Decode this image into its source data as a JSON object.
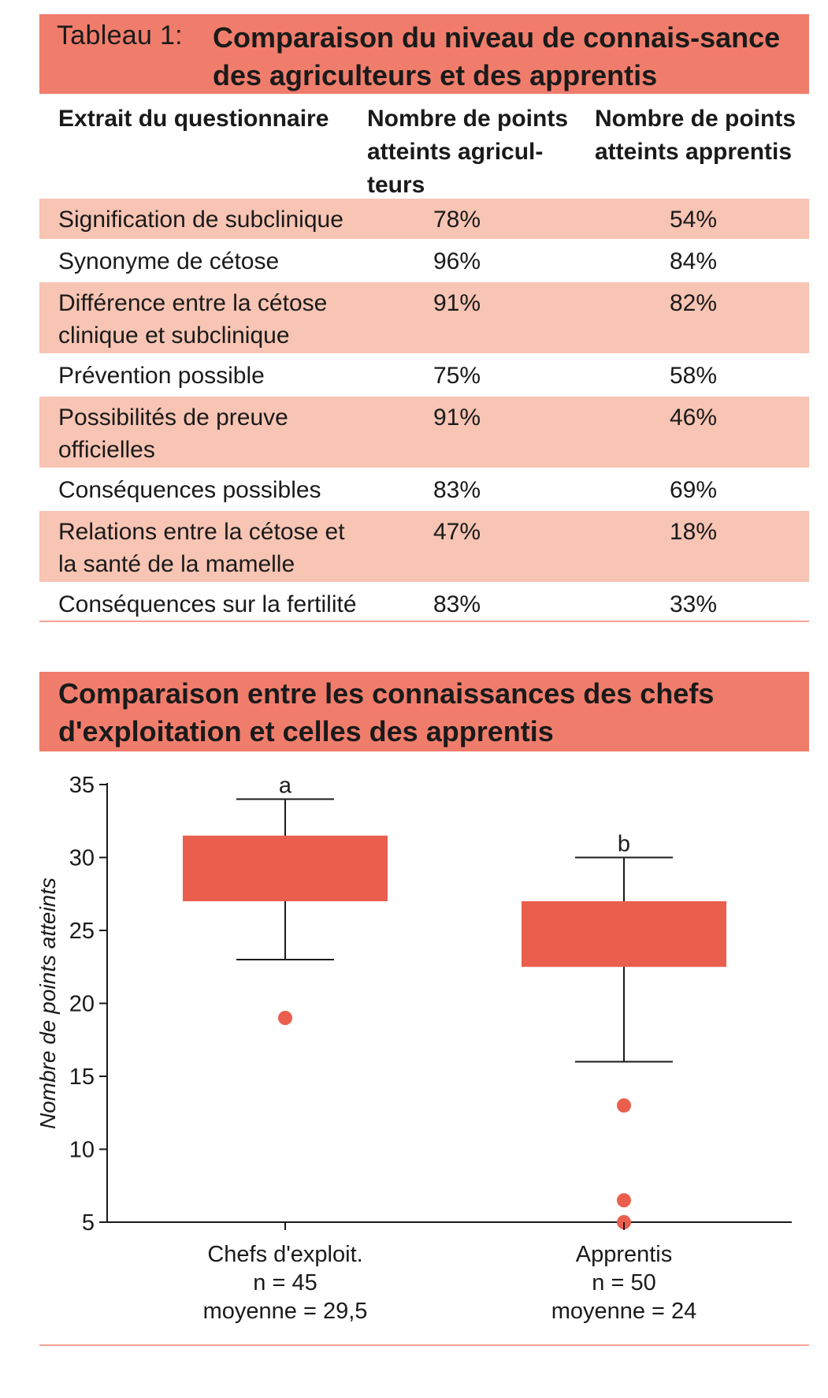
{
  "table": {
    "label": "Tableau 1:",
    "title": "Comparaison du niveau de connais-sance des agriculteurs et des apprentis",
    "columns": [
      "Extrait du questionnaire",
      "Nombre de points atteints agricul-teurs",
      "Nombre de points atteints apprentis"
    ],
    "rows": [
      {
        "item": "Signification de subclinique",
        "farmers": "78%",
        "apprentices": "54%"
      },
      {
        "item": "Synonyme de cétose",
        "farmers": "96%",
        "apprentices": "84%"
      },
      {
        "item": "Différence entre la cétose clinique et subclinique",
        "farmers": "91%",
        "apprentices": "82%"
      },
      {
        "item": "Prévention possible",
        "farmers": "75%",
        "apprentices": "58%"
      },
      {
        "item": "Possibilités de preuve officielles",
        "farmers": "91%",
        "apprentices": "46%"
      },
      {
        "item": "Conséquences possibles",
        "farmers": "83%",
        "apprentices": "69%"
      },
      {
        "item": "Relations entre la cétose et la santé de la mamelle",
        "farmers": "47%",
        "apprentices": "18%"
      },
      {
        "item": "Conséquences sur la fertilité",
        "farmers": "83%",
        "apprentices": "33%"
      }
    ]
  },
  "chart_data": {
    "type": "boxplot",
    "title": "Comparaison entre les connaissances des chefs d'exploitation et celles des apprentis",
    "ylabel": "Nombre de points atteints",
    "xlabel": "",
    "ylim": [
      5,
      35
    ],
    "yticks": [
      5,
      10,
      15,
      20,
      25,
      30,
      35
    ],
    "groups": [
      {
        "name": "Chefs d'exploit.",
        "n_label": "n = 45",
        "mean_label": "moyenne = 29,5",
        "whisker_low": 23,
        "q1": 27,
        "q3": 31.5,
        "whisker_high": 34,
        "outliers": [
          19
        ],
        "significance": "a"
      },
      {
        "name": "Apprentis",
        "n_label": "n = 50",
        "mean_label": "moyenne = 24",
        "whisker_low": 16,
        "q1": 22.5,
        "q3": 27,
        "whisker_high": 30,
        "outliers": [
          13,
          6.5,
          5
        ],
        "significance": "b"
      }
    ]
  },
  "colors": {
    "header": "#f07d6c",
    "row_shade": "#f8c4b3",
    "box": "#ea5e4e",
    "rule": "#f2a293"
  }
}
